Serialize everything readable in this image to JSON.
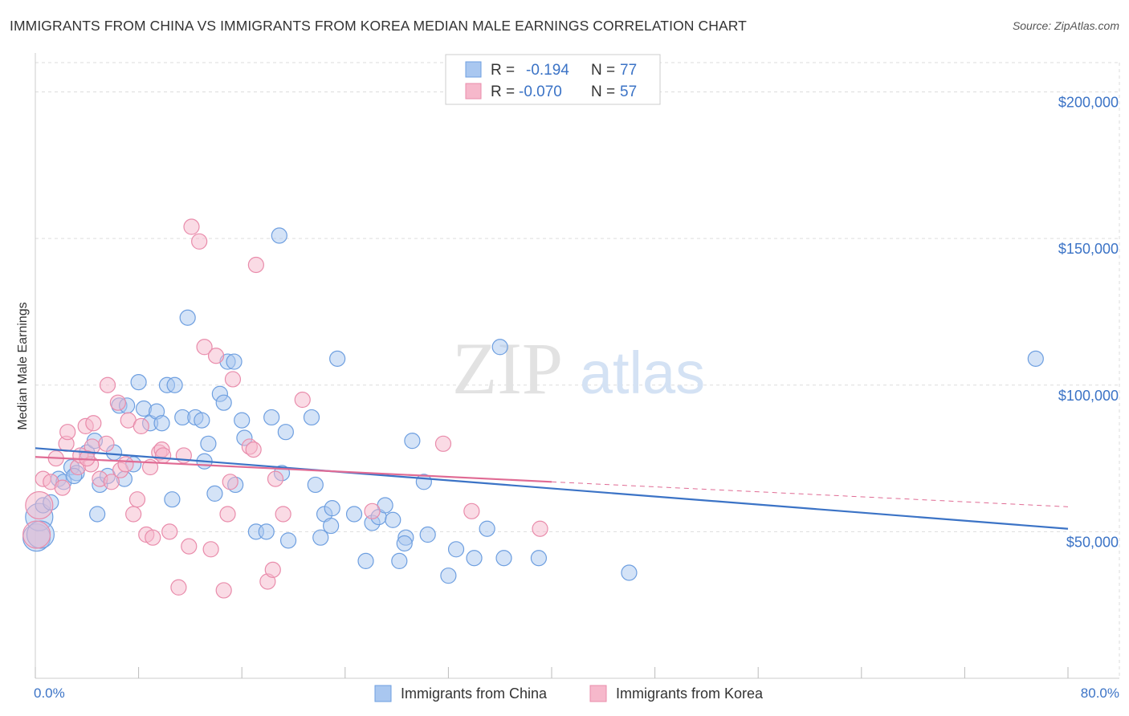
{
  "title": "IMMIGRANTS FROM CHINA VS IMMIGRANTS FROM KOREA MEDIAN MALE EARNINGS CORRELATION CHART",
  "source": "Source: ZipAtlas.com",
  "watermark": {
    "zip": "ZIP",
    "atlas": "atlas"
  },
  "colors": {
    "china_fill": "#a9c7f0",
    "china_stroke": "#6e9fe0",
    "china_line": "#3b73c6",
    "korea_fill": "#f6b8cb",
    "korea_stroke": "#e98cab",
    "korea_line": "#e06b94",
    "axis_text": "#3b73c6",
    "grid": "#dddddd"
  },
  "legend": {
    "china": {
      "r_label": "R =",
      "r_value": "-0.194",
      "n_label": "N =",
      "n_value": "77"
    },
    "korea": {
      "r_label": "R =",
      "r_value": "-0.070",
      "n_label": "N =",
      "n_value": "57"
    }
  },
  "chart_data": {
    "type": "scatter",
    "title": "IMMIGRANTS FROM CHINA VS IMMIGRANTS FROM KOREA MEDIAN MALE EARNINGS CORRELATION CHART",
    "xlabel": "",
    "ylabel": "Median Male Earnings",
    "xlim": [
      0,
      80
    ],
    "ylim": [
      0,
      210000
    ],
    "x_tick_labels": [
      {
        "value": 0,
        "label": "0.0%"
      },
      {
        "value": 80,
        "label": "80.0%"
      }
    ],
    "x_minor_ticks": [
      0,
      8,
      16,
      24,
      32,
      40,
      48,
      56,
      64,
      72,
      80
    ],
    "y_ticks": [
      {
        "value": 50000,
        "label": "$50,000"
      },
      {
        "value": 100000,
        "label": "$100,000"
      },
      {
        "value": 150000,
        "label": "$150,000"
      },
      {
        "value": 200000,
        "label": "$200,000"
      }
    ],
    "series": [
      {
        "name": "Immigrants from China",
        "points": [
          [
            0.1,
            48000
          ],
          [
            0.3,
            55000
          ],
          [
            0.6,
            59000
          ],
          [
            1.2,
            60000
          ],
          [
            1.8,
            68000
          ],
          [
            2.2,
            67000
          ],
          [
            2.8,
            72000
          ],
          [
            3.2,
            70000
          ],
          [
            3.0,
            69000
          ],
          [
            4.0,
            77000
          ],
          [
            4.6,
            81000
          ],
          [
            5.0,
            66000
          ],
          [
            4.8,
            56000
          ],
          [
            5.6,
            69000
          ],
          [
            6.1,
            77000
          ],
          [
            6.9,
            68000
          ],
          [
            6.5,
            93000
          ],
          [
            7.1,
            93000
          ],
          [
            7.6,
            73000
          ],
          [
            8.0,
            101000
          ],
          [
            8.4,
            92000
          ],
          [
            8.9,
            87000
          ],
          [
            9.4,
            91000
          ],
          [
            9.8,
            87000
          ],
          [
            10.2,
            100000
          ],
          [
            10.8,
            100000
          ],
          [
            10.6,
            61000
          ],
          [
            11.4,
            89000
          ],
          [
            11.8,
            123000
          ],
          [
            12.4,
            89000
          ],
          [
            12.9,
            88000
          ],
          [
            13.1,
            74000
          ],
          [
            13.4,
            80000
          ],
          [
            13.9,
            63000
          ],
          [
            14.3,
            97000
          ],
          [
            14.6,
            94000
          ],
          [
            14.9,
            108000
          ],
          [
            15.4,
            108000
          ],
          [
            15.5,
            66000
          ],
          [
            16.0,
            88000
          ],
          [
            16.2,
            82000
          ],
          [
            17.1,
            50000
          ],
          [
            17.9,
            50000
          ],
          [
            18.3,
            89000
          ],
          [
            18.9,
            151000
          ],
          [
            19.1,
            70000
          ],
          [
            19.4,
            84000
          ],
          [
            19.6,
            47000
          ],
          [
            21.4,
            89000
          ],
          [
            21.7,
            66000
          ],
          [
            22.1,
            48000
          ],
          [
            22.4,
            56000
          ],
          [
            22.9,
            52000
          ],
          [
            23.4,
            109000
          ],
          [
            24.7,
            56000
          ],
          [
            25.6,
            40000
          ],
          [
            26.1,
            53000
          ],
          [
            26.6,
            55000
          ],
          [
            27.1,
            59000
          ],
          [
            27.7,
            54000
          ],
          [
            28.2,
            40000
          ],
          [
            28.7,
            48000
          ],
          [
            29.2,
            81000
          ],
          [
            30.1,
            67000
          ],
          [
            30.4,
            49000
          ],
          [
            32.0,
            35000
          ],
          [
            32.6,
            44000
          ],
          [
            34.0,
            41000
          ],
          [
            35.0,
            51000
          ],
          [
            36.0,
            113000
          ],
          [
            36.3,
            41000
          ],
          [
            39.0,
            41000
          ],
          [
            46.0,
            36000
          ],
          [
            77.5,
            109000
          ],
          [
            28.6,
            46000
          ],
          [
            0.4,
            49000
          ],
          [
            23.0,
            58000
          ]
        ]
      },
      {
        "name": "Immigrants from Korea",
        "points": [
          [
            0.1,
            49000
          ],
          [
            0.3,
            59000
          ],
          [
            0.6,
            68000
          ],
          [
            1.2,
            67000
          ],
          [
            1.6,
            75000
          ],
          [
            2.1,
            65000
          ],
          [
            2.4,
            80000
          ],
          [
            2.5,
            84000
          ],
          [
            3.3,
            72000
          ],
          [
            3.5,
            76000
          ],
          [
            3.9,
            86000
          ],
          [
            4.3,
            73000
          ],
          [
            4.4,
            79000
          ],
          [
            4.5,
            87000
          ],
          [
            5.0,
            68000
          ],
          [
            5.5,
            80000
          ],
          [
            5.9,
            67000
          ],
          [
            5.6,
            100000
          ],
          [
            6.4,
            94000
          ],
          [
            6.6,
            71000
          ],
          [
            7.0,
            73000
          ],
          [
            7.2,
            88000
          ],
          [
            7.6,
            56000
          ],
          [
            7.9,
            61000
          ],
          [
            8.2,
            86000
          ],
          [
            8.6,
            49000
          ],
          [
            8.9,
            72000
          ],
          [
            9.1,
            48000
          ],
          [
            9.6,
            77000
          ],
          [
            9.8,
            78000
          ],
          [
            9.9,
            76000
          ],
          [
            10.4,
            50000
          ],
          [
            11.1,
            31000
          ],
          [
            11.5,
            76000
          ],
          [
            11.9,
            45000
          ],
          [
            12.1,
            154000
          ],
          [
            12.7,
            149000
          ],
          [
            13.1,
            113000
          ],
          [
            13.6,
            44000
          ],
          [
            14.0,
            110000
          ],
          [
            14.6,
            30000
          ],
          [
            14.9,
            56000
          ],
          [
            15.1,
            67000
          ],
          [
            15.3,
            102000
          ],
          [
            16.6,
            79000
          ],
          [
            16.9,
            78000
          ],
          [
            17.1,
            141000
          ],
          [
            18.0,
            33000
          ],
          [
            18.4,
            37000
          ],
          [
            18.6,
            68000
          ],
          [
            19.2,
            56000
          ],
          [
            20.7,
            95000
          ],
          [
            26.1,
            57000
          ],
          [
            31.6,
            80000
          ],
          [
            33.8,
            57000
          ],
          [
            39.1,
            51000
          ],
          [
            4.0,
            75000
          ]
        ]
      }
    ],
    "trendlines": [
      {
        "name": "Immigrants from China",
        "x": [
          0,
          80
        ],
        "y": [
          78500,
          51000
        ],
        "style": "solid"
      },
      {
        "name": "Immigrants from Korea",
        "x": [
          0,
          40
        ],
        "y": [
          75500,
          67000
        ],
        "style": "solid"
      },
      {
        "name": "Immigrants from Korea",
        "x": [
          40,
          80
        ],
        "y": [
          67000,
          58500
        ],
        "style": "dashed"
      }
    ],
    "legend_entries": [
      "Immigrants from China",
      "Immigrants from Korea"
    ],
    "grid": true
  }
}
